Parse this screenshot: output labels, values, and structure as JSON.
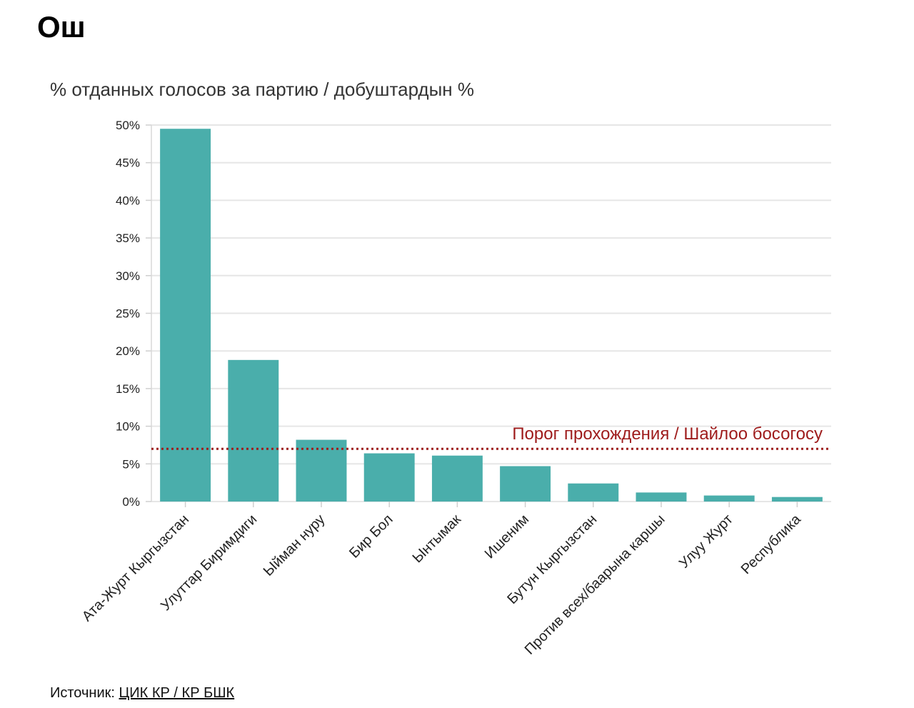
{
  "page": {
    "title": "Ош"
  },
  "source": {
    "label": "Источник:",
    "link_text": "ЦИК КР / КР БШК"
  },
  "colors": {
    "bar": "#4aaeab",
    "threshold": "#9e1b1b",
    "grid": "#e6e6e6"
  },
  "chart_data": {
    "type": "bar",
    "title": "% отданных голосов за партию / добуштардын %",
    "xlabel": "",
    "ylabel": "",
    "categories": [
      "Ата-Журт Кыргызстан",
      "Улуттар Биримдиги",
      "Ыйман нуру",
      "Бир Бол",
      "Ынтымак",
      "Ишеним",
      "Бутун Кыргызстан",
      "Против всех/баарына каршы",
      "Улуу Журт",
      "Республика"
    ],
    "values": [
      49.5,
      18.8,
      8.2,
      6.4,
      6.1,
      4.7,
      2.4,
      1.2,
      0.8,
      0.6
    ],
    "ylim": [
      0,
      50
    ],
    "yticks": [
      "0%",
      "5%",
      "10%",
      "15%",
      "20%",
      "25%",
      "30%",
      "35%",
      "40%",
      "45%",
      "50%"
    ],
    "ytick_values": [
      0,
      5,
      10,
      15,
      20,
      25,
      30,
      35,
      40,
      45,
      50
    ],
    "grid": true,
    "threshold": {
      "value": 7,
      "label": "Порог прохождения / Шайлоо босогосу"
    }
  }
}
